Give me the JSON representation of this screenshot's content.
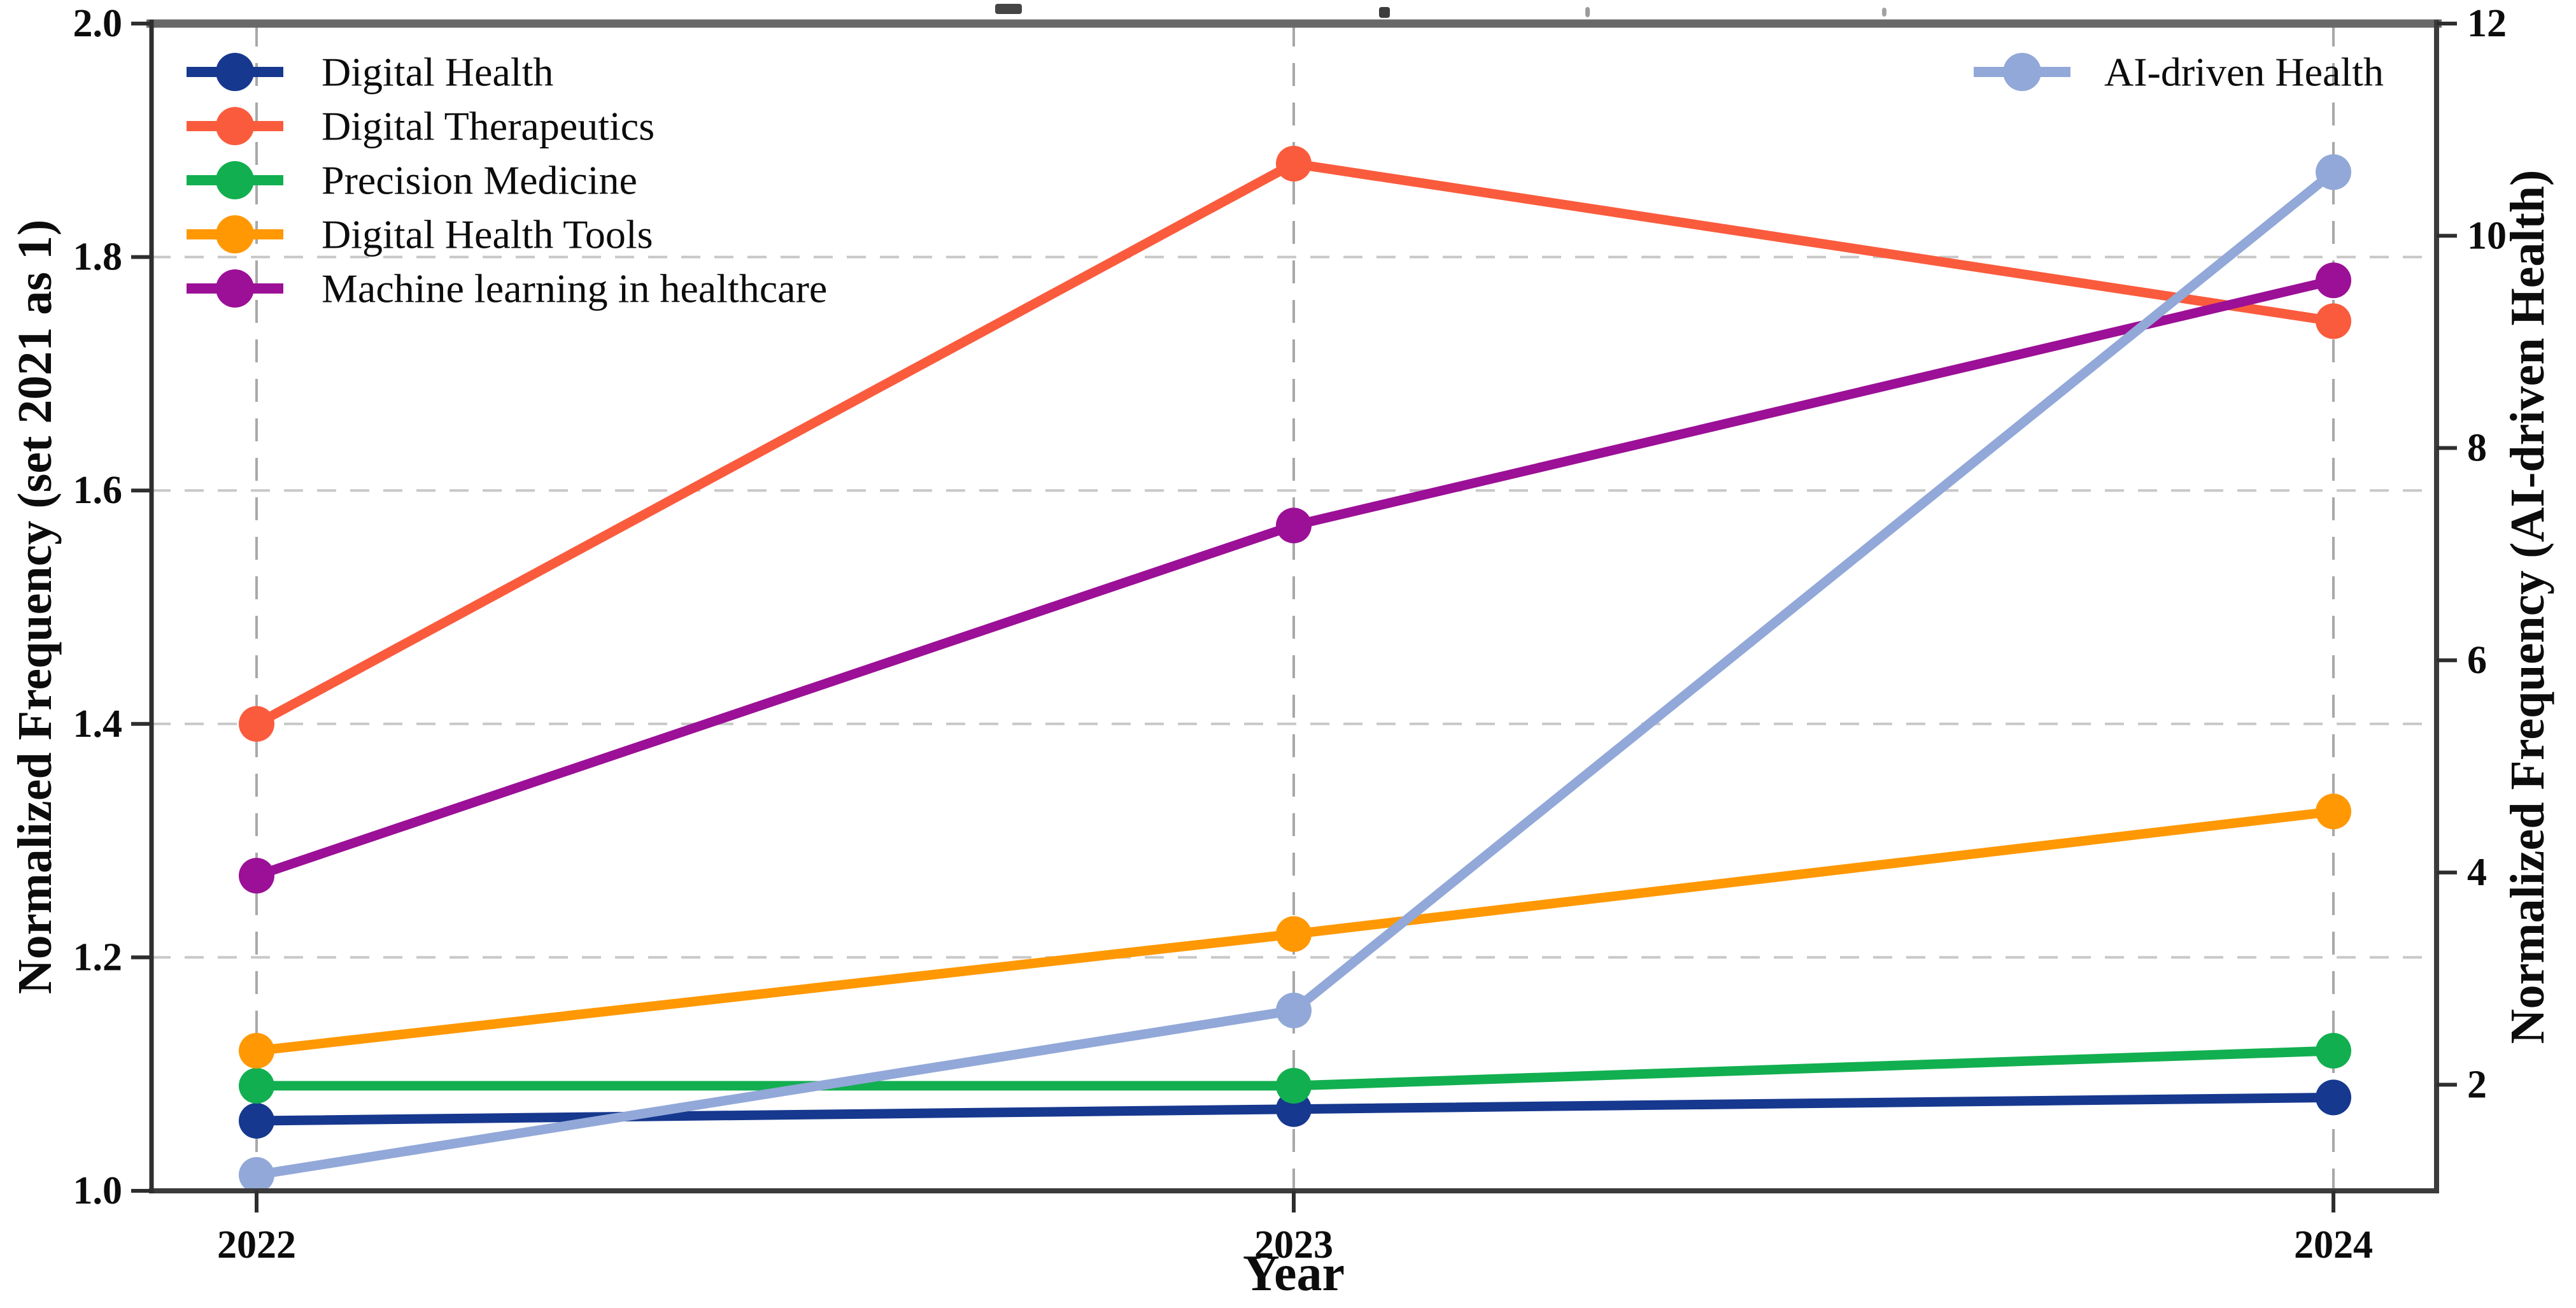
{
  "chart_data": {
    "type": "line",
    "categories": [
      "2022",
      "2023",
      "2024"
    ],
    "xlabel": "Year",
    "grid": true,
    "left_axis": {
      "label": "Normalized Frequency (set 2021 as 1)",
      "range": [
        1.0,
        2.0
      ],
      "tick_values": [
        1.0,
        1.2,
        1.4,
        1.6,
        1.8,
        2.0
      ],
      "ticks": [
        "1.0",
        "1.2",
        "1.4",
        "1.6",
        "1.8",
        "2.0"
      ],
      "gridline_values": [
        1.2,
        1.4,
        1.6,
        1.8
      ]
    },
    "right_axis": {
      "label": "Normalized Frequency (AI-driven Health)",
      "range": [
        1.0,
        12.0
      ],
      "tick_values": [
        2,
        4,
        6,
        8,
        10,
        12
      ],
      "ticks": [
        "2",
        "4",
        "6",
        "8",
        "10",
        "12"
      ]
    },
    "legend_positions": {
      "left_legend": "upper left",
      "right_legend": "upper right"
    },
    "series": [
      {
        "name": "Digital Health",
        "axis": "left",
        "legend": "left",
        "color": "#16388E",
        "values": [
          1.06,
          1.07,
          1.08
        ]
      },
      {
        "name": "Digital Therapeutics",
        "axis": "left",
        "legend": "left",
        "color": "#FA5B3D",
        "values": [
          1.4,
          1.88,
          1.745
        ]
      },
      {
        "name": "Precision Medicine",
        "axis": "left",
        "legend": "left",
        "color": "#12AF50",
        "values": [
          1.09,
          1.09,
          1.12
        ]
      },
      {
        "name": "Digital Health Tools",
        "axis": "left",
        "legend": "left",
        "color": "#FF9803",
        "values": [
          1.12,
          1.22,
          1.325
        ]
      },
      {
        "name": "Machine learning in healthcare",
        "axis": "left",
        "legend": "left",
        "color": "#9B1096",
        "values": [
          1.27,
          1.57,
          1.78
        ]
      },
      {
        "name": "AI-driven Health",
        "axis": "right",
        "legend": "right",
        "color": "#92A8D8",
        "values": [
          1.15,
          2.7,
          10.6
        ]
      }
    ]
  }
}
